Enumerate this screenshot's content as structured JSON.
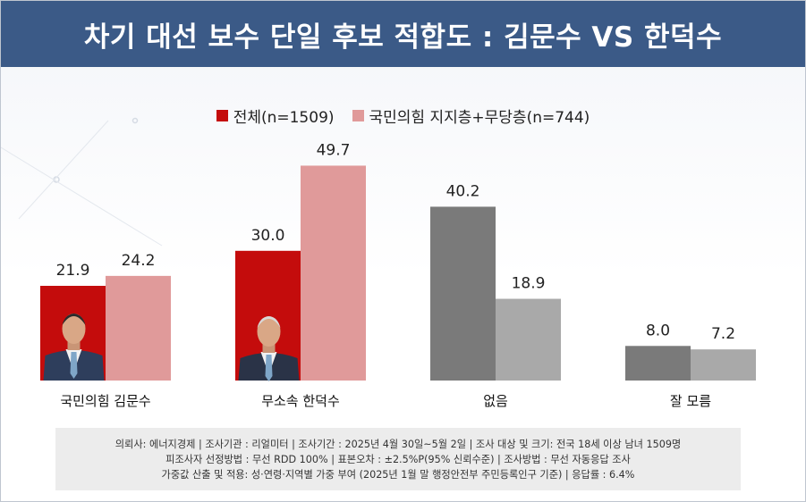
{
  "title": "차기 대선 보수 단일 후보 적합도 : 김문수 VS 한덕수",
  "colors": {
    "header_bg": "#3b5a87",
    "series1_red": "#c40c0c",
    "series2_pink": "#e09a9a",
    "series1_gray": "#7a7a7a",
    "series2_gray": "#a9a9a9"
  },
  "chart_data": {
    "type": "bar",
    "categories": [
      "국민의힘 김문수",
      "무소속 한덕수",
      "없음",
      "잘 모름"
    ],
    "series": [
      {
        "name": "전체(n=1509)",
        "values": [
          21.9,
          30.0,
          40.2,
          8.0
        ]
      },
      {
        "name": "국민의힘 지지층+무당층(n=744)",
        "values": [
          24.2,
          49.7,
          18.9,
          7.2
        ]
      }
    ],
    "value_labels": [
      [
        "21.9",
        "30.0",
        "40.2",
        "8.0"
      ],
      [
        "24.2",
        "49.7",
        "18.9",
        "7.2"
      ]
    ],
    "ylim": [
      0,
      50
    ],
    "title": "",
    "xlabel": "",
    "ylabel": "",
    "legend": "top-center",
    "grid": false
  },
  "footer": {
    "line1": "의뢰사: 에너지경제 | 조사기관 : 리얼미터  |  조사기간 : 2025년 4월 30일~5월 2일 | 조사 대상 및 크기: 전국 18세 이상 남녀 1509명",
    "line2": "피조사자 선정방법 : 무선 RDD 100% | 표본오차 : ±2.5%P(95% 신뢰수준) | 조사방법 : 무선 자동응답 조사",
    "line3": "가중값 산출 및 적용: 성·연령·지역별 가중 부여 (2025년 1월 말 행정안전부 주민등록인구 기준) | 응답률 : 6.4%"
  }
}
